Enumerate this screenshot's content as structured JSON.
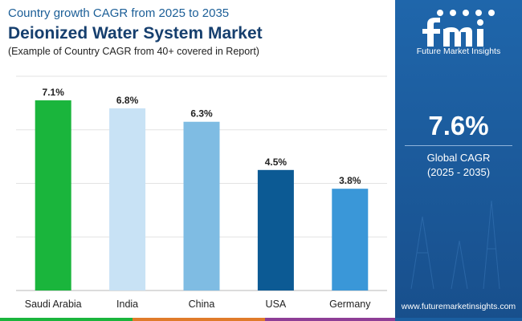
{
  "header": {
    "supertitle": "Country growth CAGR from 2025 to 2035",
    "title": "Deionized Water System Market",
    "subtitle": "(Example of Country CAGR from 40+ covered in Report)"
  },
  "chart_data": {
    "type": "bar",
    "categories": [
      "Saudi Arabia",
      "India",
      "China",
      "USA",
      "Germany"
    ],
    "values": [
      7.1,
      6.8,
      6.3,
      4.5,
      3.8
    ],
    "value_labels": [
      "7.1%",
      "6.8%",
      "6.3%",
      "4.5%",
      "3.8%"
    ],
    "colors": [
      "#1ab53c",
      "#c8e2f5",
      "#7fbce3",
      "#0c5a94",
      "#3a97d8"
    ],
    "ylim": [
      0,
      8
    ],
    "gridlines": [
      0,
      2,
      4,
      6,
      8
    ],
    "grid": true,
    "legend": "none"
  },
  "side_panel": {
    "brand": "Future Market Insights",
    "cagr_value": "7.6%",
    "cagr_label": "Global CAGR",
    "cagr_period": "(2025 - 2035)",
    "website": "www.futuremarketinsights.com"
  },
  "colors": {
    "panel": "#1a5ea0",
    "title": "#163f6e",
    "footer": [
      "#1ab53c",
      "#e07b2a",
      "#8e3e96",
      "#1a5ea0"
    ]
  }
}
